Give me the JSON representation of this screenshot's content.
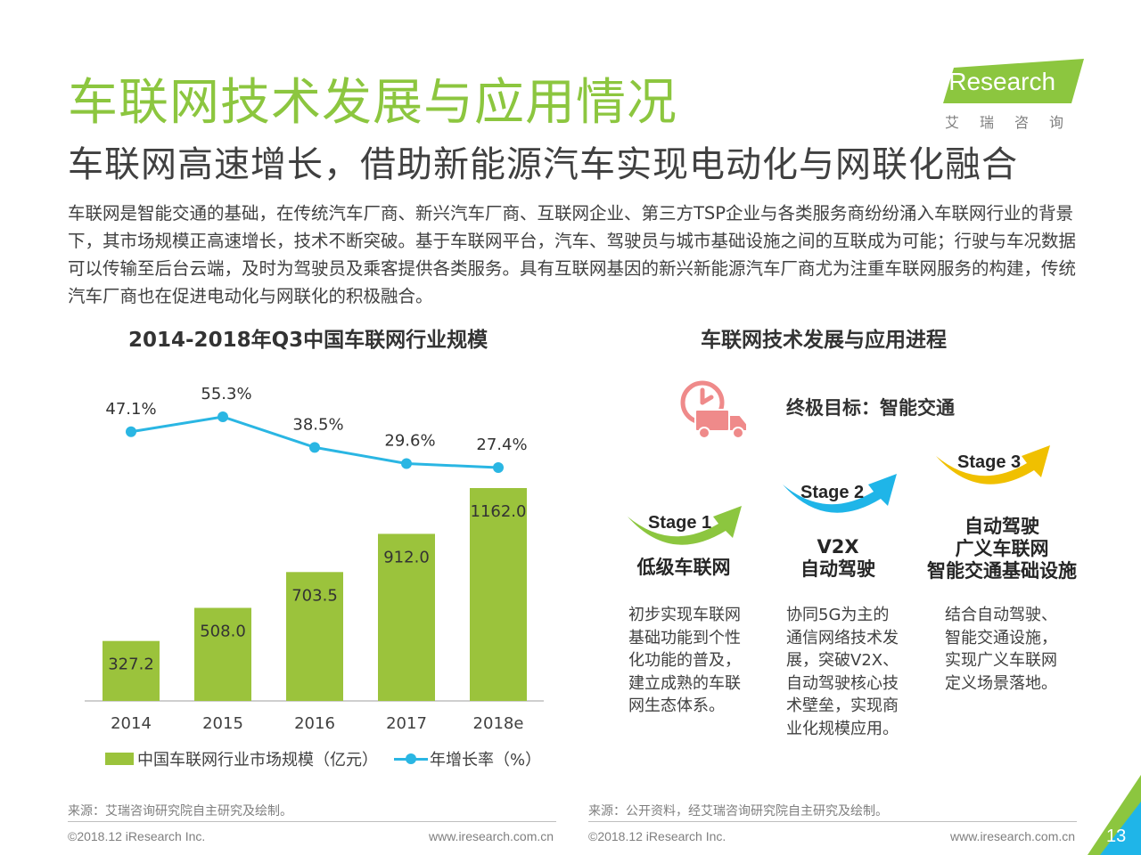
{
  "header": {
    "title": "车联网技术发展与应用情况",
    "subtitle": "车联网高速增长，借助新能源汽车实现电动化与网联化融合",
    "logo_text": "iResearch",
    "logo_cn": "艾瑞咨询"
  },
  "intro": "车联网是智能交通的基础，在传统汽车厂商、新兴汽车厂商、互联网企业、第三方TSP企业与各类服务商纷纷涌入车联网行业的背景下，其市场规模正高速增长，技术不断突破。基于车联网平台，汽车、驾驶员与城市基础设施之间的互联成为可能；行驶与车况数据可以传输至后台云端，及时为驾驶员及乘客提供各类服务。具有互联网基因的新兴新能源汽车厂商尤为注重车联网服务的构建，传统汽车厂商也在促进电动化与网联化的积极融合。",
  "chart_data": {
    "type": "bar",
    "title": "2014-2018年Q3中国车联网行业规模",
    "categories": [
      "2014",
      "2015",
      "2016",
      "2017",
      "2018e"
    ],
    "series": [
      {
        "name": "中国车联网行业市场规模（亿元）",
        "type": "bar",
        "values": [
          327.2,
          508.0,
          703.5,
          912.0,
          1162.0
        ],
        "labels": [
          "327.2",
          "508.0",
          "703.5",
          "912.0",
          "1162.0"
        ],
        "color": "#9bc33c"
      },
      {
        "name": "年增长率（%）",
        "type": "line",
        "values": [
          47.1,
          55.3,
          38.5,
          29.6,
          27.4
        ],
        "labels": [
          "47.1%",
          "55.3%",
          "38.5%",
          "29.6%",
          "27.4%"
        ],
        "color": "#2ab6e3"
      }
    ],
    "grid": false,
    "legend": "bottom"
  },
  "roadmap": {
    "title": "车联网技术发展与应用进程",
    "goal": "终极目标：智能交通",
    "stages": [
      {
        "label": "Stage 1",
        "name": [
          "低级车联网"
        ],
        "desc": [
          "初步实现车联网",
          "基础功能到个性",
          "化功能的普及，",
          "建立成熟的车联",
          "网生态体系。"
        ]
      },
      {
        "label": "Stage 2",
        "name": [
          "V2X",
          "自动驾驶"
        ],
        "desc": [
          "协同5G为主的",
          "通信网络技术发",
          "展，突破V2X、",
          "自动驾驶核心技",
          "术壁垒，实现商",
          "业化规模应用。"
        ]
      },
      {
        "label": "Stage 3",
        "name": [
          "自动驾驶",
          "广义车联网",
          "智能交通基础设施"
        ],
        "desc": [
          "结合自动驾驶、",
          "智能交通设施，",
          "实现广义车联网",
          "定义场景落地。"
        ]
      }
    ]
  },
  "footer": {
    "source_left": "来源：艾瑞咨询研究院自主研究及绘制。",
    "source_right": "来源：公开资料，经艾瑞咨询研究院自主研究及绘制。",
    "copyright": "©2018.12 iResearch Inc.",
    "site": "www.iresearch.com.cn",
    "page": "13"
  },
  "colors": {
    "title_green": "#8cc63f",
    "bar_green": "#9bc33c",
    "line_blue": "#2ab6e3",
    "stage1_arrow": "#8cc63f",
    "stage2_arrow": "#1fb5e8",
    "stage3_arrow": "#f0c000"
  }
}
